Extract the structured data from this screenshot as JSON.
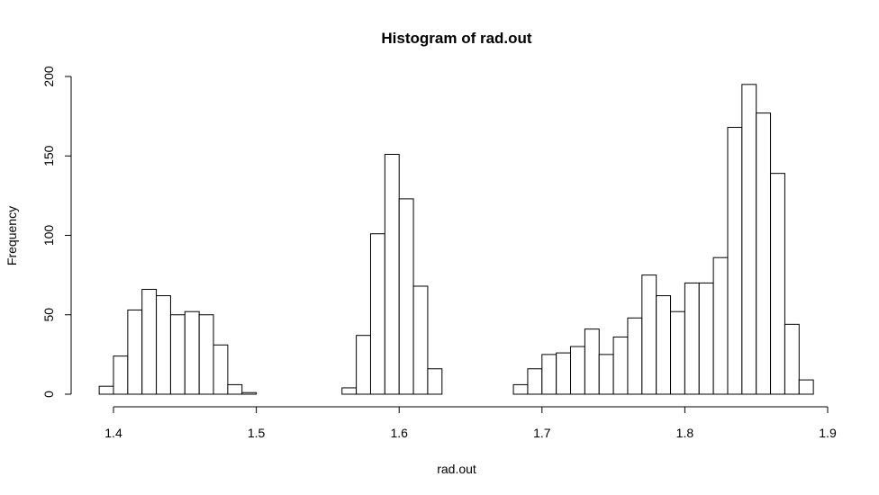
{
  "chart_data": {
    "type": "bar",
    "title": "Histogram of rad.out",
    "xlabel": "rad.out",
    "ylabel": "Frequency",
    "xlim": [
      1.39,
      1.89
    ],
    "ylim": [
      0,
      200
    ],
    "x_ticks": [
      "1.4",
      "1.5",
      "1.6",
      "1.7",
      "1.8",
      "1.9"
    ],
    "y_ticks": [
      "0",
      "50",
      "100",
      "150",
      "200"
    ],
    "bin_start": 1.39,
    "bin_width": 0.01,
    "values": [
      5,
      24,
      53,
      66,
      62,
      50,
      52,
      50,
      31,
      6,
      1,
      0,
      0,
      0,
      0,
      0,
      0,
      4,
      37,
      101,
      151,
      123,
      68,
      16,
      0,
      0,
      0,
      0,
      0,
      6,
      16,
      25,
      26,
      30,
      41,
      25,
      36,
      48,
      75,
      62,
      52,
      70,
      70,
      86,
      168,
      195,
      177,
      139,
      44,
      9
    ]
  }
}
